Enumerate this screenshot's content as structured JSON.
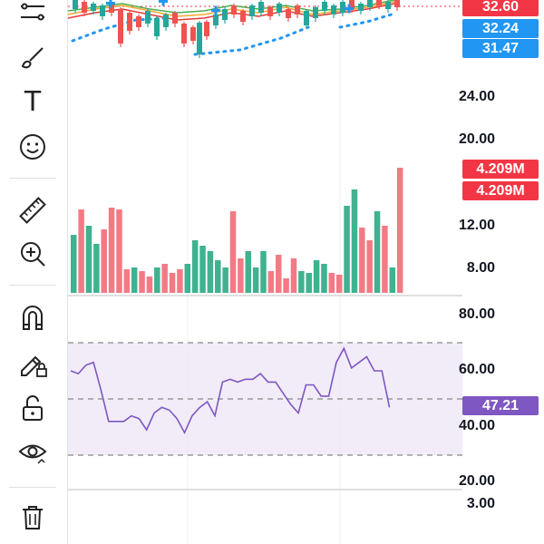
{
  "toolbar": {
    "items": [
      {
        "name": "trend-lines-tool",
        "icon": "trend-lines-icon"
      },
      {
        "name": "brush-tool",
        "icon": "brush-icon"
      },
      {
        "name": "text-tool",
        "icon": "text-icon",
        "glyph": "T"
      },
      {
        "name": "emoji-tool",
        "icon": "smiley-icon"
      },
      {
        "name": "measure-tool",
        "icon": "ruler-icon"
      },
      {
        "name": "zoom-tool",
        "icon": "zoom-in-icon"
      },
      {
        "name": "magnet-tool",
        "icon": "magnet-icon"
      },
      {
        "name": "lock-drawings-tool",
        "icon": "pencil-lock-icon"
      },
      {
        "name": "lock-all-tool",
        "icon": "unlock-icon"
      },
      {
        "name": "hide-tool",
        "icon": "eye-icon"
      },
      {
        "name": "delete-tool",
        "icon": "trash-icon"
      }
    ]
  },
  "price_axis": {
    "ticks": [
      "24.00",
      "20.00",
      "12.00",
      "8.00"
    ],
    "badges": {
      "last_price": {
        "label": "32.60",
        "color": "#f23645"
      },
      "ma_upper": {
        "label": "32.24",
        "color": "#2196f3"
      },
      "ma_lower": {
        "label": "31.47",
        "color": "#2196f3"
      }
    }
  },
  "volume": {
    "badges": [
      "4.209M",
      "4.209M"
    ],
    "badge_color": "#f23645",
    "bars": [
      {
        "v": 0.32,
        "dir": "up"
      },
      {
        "v": 0.46,
        "dir": "down"
      },
      {
        "v": 0.37,
        "dir": "up"
      },
      {
        "v": 0.27,
        "dir": "up"
      },
      {
        "v": 0.35,
        "dir": "down"
      },
      {
        "v": 0.47,
        "dir": "down"
      },
      {
        "v": 0.46,
        "dir": "down"
      },
      {
        "v": 0.13,
        "dir": "down"
      },
      {
        "v": 0.14,
        "dir": "up"
      },
      {
        "v": 0.12,
        "dir": "down"
      },
      {
        "v": 0.09,
        "dir": "down"
      },
      {
        "v": 0.14,
        "dir": "up"
      },
      {
        "v": 0.16,
        "dir": "down"
      },
      {
        "v": 0.11,
        "dir": "down"
      },
      {
        "v": 0.13,
        "dir": "down"
      },
      {
        "v": 0.16,
        "dir": "up"
      },
      {
        "v": 0.29,
        "dir": "up"
      },
      {
        "v": 0.26,
        "dir": "up"
      },
      {
        "v": 0.23,
        "dir": "up"
      },
      {
        "v": 0.18,
        "dir": "up"
      },
      {
        "v": 0.14,
        "dir": "up"
      },
      {
        "v": 0.45,
        "dir": "down"
      },
      {
        "v": 0.19,
        "dir": "down"
      },
      {
        "v": 0.23,
        "dir": "up"
      },
      {
        "v": 0.14,
        "dir": "up"
      },
      {
        "v": 0.23,
        "dir": "up"
      },
      {
        "v": 0.12,
        "dir": "down"
      },
      {
        "v": 0.21,
        "dir": "down"
      },
      {
        "v": 0.08,
        "dir": "down"
      },
      {
        "v": 0.19,
        "dir": "down"
      },
      {
        "v": 0.12,
        "dir": "up"
      },
      {
        "v": 0.11,
        "dir": "up"
      },
      {
        "v": 0.18,
        "dir": "up"
      },
      {
        "v": 0.16,
        "dir": "up"
      },
      {
        "v": 0.11,
        "dir": "down"
      },
      {
        "v": 0.1,
        "dir": "down"
      },
      {
        "v": 0.48,
        "dir": "up"
      },
      {
        "v": 0.57,
        "dir": "up"
      },
      {
        "v": 0.36,
        "dir": "down"
      },
      {
        "v": 0.29,
        "dir": "down"
      },
      {
        "v": 0.45,
        "dir": "up"
      },
      {
        "v": 0.37,
        "dir": "down"
      },
      {
        "v": 0.14,
        "dir": "up"
      },
      {
        "v": 0.69,
        "dir": "down"
      }
    ],
    "up_color": "#3fb28f",
    "down_color": "#f37a85"
  },
  "rsi": {
    "ticks": [
      "80.00",
      "60.00",
      "40.00",
      "20.00"
    ],
    "overbought": 70,
    "middle": 50,
    "oversold": 30,
    "current": {
      "label": "47.21",
      "color": "#7e57c2"
    },
    "band_color": "#ede7f6",
    "line_color": "#7e57c2",
    "values": [
      60,
      59,
      62,
      63,
      53,
      42,
      42,
      42,
      44,
      43,
      39,
      45,
      47,
      46,
      43,
      38,
      44,
      47,
      49,
      44,
      56,
      57,
      56,
      57,
      57,
      59,
      56,
      56,
      52,
      48,
      45,
      55,
      55,
      51,
      51,
      63,
      68,
      61,
      63,
      65,
      60,
      60,
      47
    ]
  },
  "lower_pane": {
    "tick": "3.00"
  },
  "colors": {
    "candle_up": "#26a69a",
    "candle_down": "#ef5350",
    "ma_orange": "#f7a72e",
    "ma_green": "#4caf50",
    "ma_red": "#e53935",
    "dotted_blue": "#2196f3"
  }
}
